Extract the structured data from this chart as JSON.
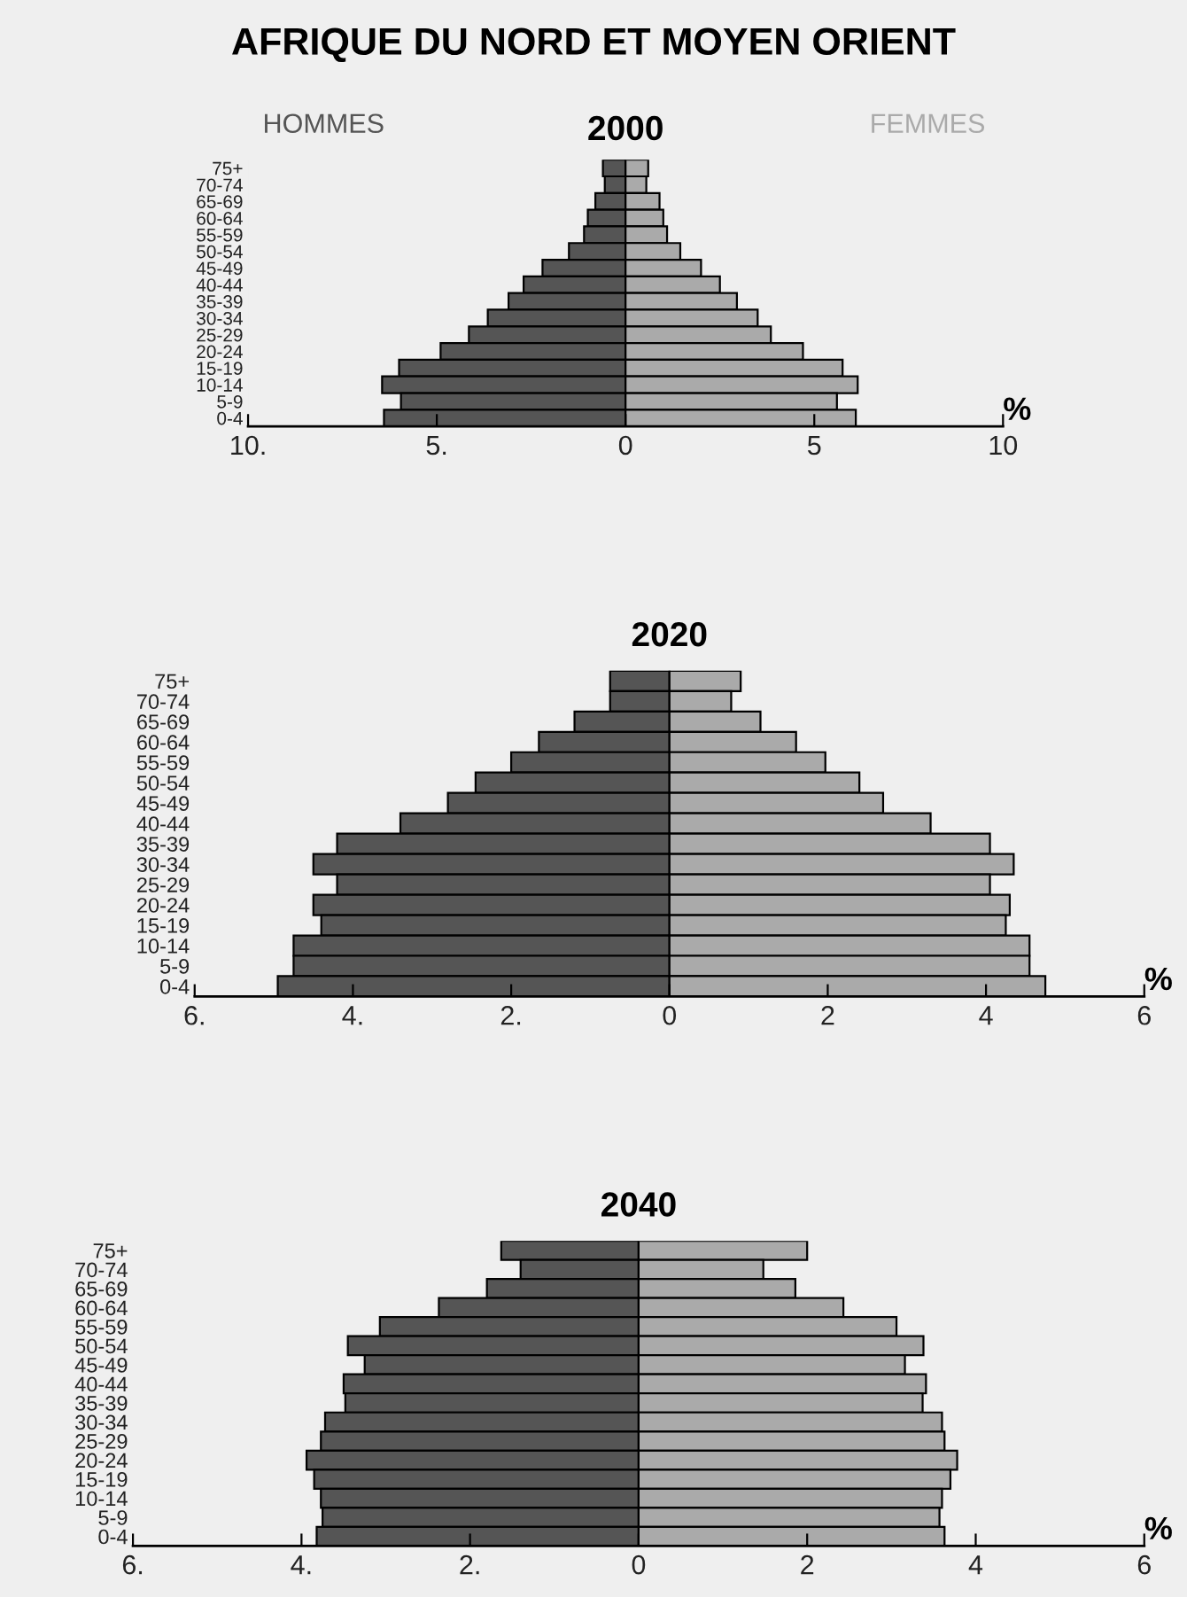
{
  "chart_data": [
    {
      "type": "bar",
      "orientation": "horizontal",
      "stacked": true,
      "title": "AFRIQUE DU NORD ET MOYEN ORIENT",
      "subtitle": "2000",
      "xlabel": "%",
      "categories": [
        "75+",
        "70-74",
        "65-69",
        "60-64",
        "55-59",
        "50-54",
        "45-49",
        "40-44",
        "35-39",
        "30-34",
        "25-29",
        "20-24",
        "15-19",
        "10-14",
        "5-9",
        "0-4"
      ],
      "series": [
        {
          "name": "HOMMES",
          "color": "#555555",
          "values": [
            -0.6,
            -0.55,
            -0.8,
            -1.0,
            -1.1,
            -1.5,
            -2.2,
            -2.7,
            -3.1,
            -3.65,
            -4.15,
            -4.9,
            -6.0,
            -6.45,
            -5.95,
            -6.4
          ]
        },
        {
          "name": "FEMMES",
          "color": "#aaaaaa",
          "values": [
            0.6,
            0.55,
            0.9,
            1.0,
            1.1,
            1.45,
            2.0,
            2.5,
            2.95,
            3.5,
            3.85,
            4.7,
            5.75,
            6.15,
            5.6,
            6.1
          ]
        }
      ],
      "xlim": [
        -10,
        10
      ],
      "xticks": [
        {
          "value": -10,
          "label": "10."
        },
        {
          "value": -5,
          "label": "5."
        },
        0,
        5,
        10
      ],
      "grid": false,
      "legend": false
    },
    {
      "type": "bar",
      "orientation": "horizontal",
      "stacked": true,
      "title": "2020",
      "xlabel": "%",
      "categories": [
        "75+",
        "70-74",
        "65-69",
        "60-64",
        "55-59",
        "50-54",
        "45-49",
        "40-44",
        "35-39",
        "30-34",
        "25-29",
        "20-24",
        "15-19",
        "10-14",
        "5-9",
        "0-4"
      ],
      "series": [
        {
          "color": "#555555",
          "values": [
            -0.75,
            -0.75,
            -1.2,
            -1.65,
            -2.0,
            -2.45,
            -2.8,
            -3.4,
            -4.2,
            -4.5,
            -4.2,
            -4.5,
            -4.4,
            -4.75,
            -4.75,
            -4.95
          ]
        },
        {
          "color": "#aaaaaa",
          "values": [
            0.9,
            0.78,
            1.15,
            1.6,
            1.97,
            2.4,
            2.7,
            3.3,
            4.05,
            4.35,
            4.05,
            4.3,
            4.25,
            4.55,
            4.55,
            4.75
          ]
        }
      ],
      "xlim": [
        -6,
        6
      ],
      "xticks": [
        {
          "value": -6,
          "label": "6."
        },
        {
          "value": -4,
          "label": "4."
        },
        {
          "value": -2,
          "label": "2."
        },
        0,
        2,
        4,
        6
      ],
      "grid": false,
      "legend": false
    },
    {
      "type": "bar",
      "orientation": "horizontal",
      "stacked": true,
      "title": "2040",
      "xlabel": "%",
      "categories": [
        "75+",
        "70-74",
        "65-69",
        "60-64",
        "55-59",
        "50-54",
        "45-49",
        "40-44",
        "35-39",
        "30-34",
        "25-29",
        "20-24",
        "15-19",
        "10-14",
        "5-9",
        "0-4"
      ],
      "series": [
        {
          "color": "#555555",
          "values": [
            -1.63,
            -1.4,
            -1.8,
            -2.37,
            -3.07,
            -3.45,
            -3.25,
            -3.5,
            -3.48,
            -3.72,
            -3.77,
            -3.94,
            -3.85,
            -3.77,
            -3.75,
            -3.82
          ]
        },
        {
          "color": "#aaaaaa",
          "values": [
            2.0,
            1.48,
            1.86,
            2.43,
            3.06,
            3.38,
            3.16,
            3.41,
            3.37,
            3.6,
            3.63,
            3.78,
            3.7,
            3.6,
            3.57,
            3.63
          ]
        }
      ],
      "xlim": [
        -6,
        6
      ],
      "xticks": [
        {
          "value": -6,
          "label": "6."
        },
        {
          "value": -4,
          "label": "4."
        },
        {
          "value": -2,
          "label": "2."
        },
        0,
        2,
        4,
        6
      ],
      "grid": false,
      "legend": false
    }
  ]
}
